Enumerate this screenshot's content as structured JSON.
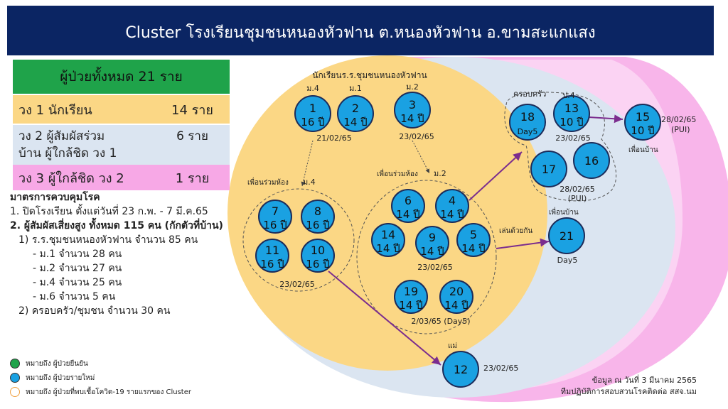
{
  "title": "Cluster โรงเรียนชุมชนหนองหัวฟาน ต.หนองหัวฟาน อ.ขามสะแกแสง",
  "colors": {
    "banner": "#0b2563",
    "student_zone": "#fbd785",
    "contact_zone": "#dbe5f1",
    "close_zone": "#f7a8e6",
    "patient": "#1aa1e2",
    "total_header": "#1fa34a"
  },
  "summary": {
    "total": "ผู้ป่วยทั้งหมด 21 ราย",
    "rows": [
      {
        "label": "วง 1 นักเรียน",
        "value": "14 ราย"
      },
      {
        "label": "วง 2 ผู้สัมผัสร่วม\nบ้าน ผู้ใกล้ชิด วง 1",
        "label_1": "วง 2 ผู้สัมผัสร่วม",
        "label_2": "บ้าน ผู้ใกล้ชิด วง 1",
        "value": "6 ราย"
      },
      {
        "label": "วง 3 ผู้ใกล้ชิด วง 2",
        "value": "1 ราย"
      }
    ]
  },
  "measures": {
    "heading": "มาตรการควบคุมโรค",
    "lines": [
      "1. ปิดโรงเรียน ตั้งแต่วันที่ 23 ก.พ. - 7 มี.ค.65",
      "2. ผู้สัมผัสเสี่ยงสูง ทั้งหมด 115 คน (กักตัวที่บ้าน)",
      "1) ร.ร.ชุมชนหนองหัวฟาน จำนวน 85 คน",
      "- ม.1   จำนวน  28 คน",
      "- ม.2   จำนวน  27 คน",
      "- ม.4   จำนวน  25 คน",
      "- ม.6  จำนวน    5 คน",
      "2) ครอบครัว/ชุมชน จำนวน 30 คน"
    ]
  },
  "legend": [
    {
      "color": "#1fa34a",
      "text": "หมายถึง ผู้ป่วยยืนยัน",
      "icon": "green-dot"
    },
    {
      "color": "#1aa1e2",
      "text": "หมายถึง ผู้ป่วยรายใหม่",
      "icon": "blue-dot"
    },
    {
      "color": "#f0a040",
      "text": "หมายถึง ผู้ป่วยที่พบเชื้อโควิด-19 รายแรกของ Cluster",
      "icon": "orange-ring"
    }
  ],
  "source": [
    "ข้อมูล ณ วันที่ 3 มีนาคม 2565",
    "ทีมปฏิบัติการสอบสวนโรคติดต่อ สสจ.นม"
  ],
  "labels": {
    "school": "นักเรียนร.ร.ชุมชนหนองหัวฟาน",
    "m4": "ม.4",
    "m1": "ม.1",
    "m2": "ม.2",
    "p4": "ป.4",
    "classmates_m4": "เพื่อนร่วมห้อง",
    "classmates_m4_grade": "ม.4",
    "classmates_m2": "เพื่อนร่วมห้อง",
    "classmates_m2_grade": "ม.2",
    "family": "ครอบครัว",
    "neighbor_friend": "เพื่อนบ้าน",
    "neighbor_friend2": "เพื่อนบ้าน",
    "play_together": "เล่นด้วยกัน",
    "mother": "แม่",
    "date_a": "21/02/65",
    "date_b": "23/02/65",
    "date_c": "23/02/65",
    "date_d": "23/02/65",
    "date_e": "2/03/65 (Day5)",
    "date_f": "23/02/65",
    "date_g": "28/02/65",
    "date_g2": "(PUI)",
    "date_h": "28/02/65",
    "date_h2": "(PUI)",
    "date_i": "23/02/65",
    "date_j": "Day5"
  },
  "patients": [
    {
      "id": "p1",
      "num": "1",
      "age": "16 ปี"
    },
    {
      "id": "p2",
      "num": "2",
      "age": "14 ปี"
    },
    {
      "id": "p3",
      "num": "3",
      "age": "14 ปี"
    },
    {
      "id": "p7",
      "num": "7",
      "age": "16 ปี"
    },
    {
      "id": "p8",
      "num": "8",
      "age": "16 ปี"
    },
    {
      "id": "p11",
      "num": "11",
      "age": "16 ปี"
    },
    {
      "id": "p10",
      "num": "10",
      "age": "16 ปี"
    },
    {
      "id": "p6",
      "num": "6",
      "age": "14 ปี"
    },
    {
      "id": "p4",
      "num": "4",
      "age": "14 ปี"
    },
    {
      "id": "p14",
      "num": "14",
      "age": "14 ปี"
    },
    {
      "id": "p9",
      "num": "9",
      "age": "14 ปี"
    },
    {
      "id": "p5",
      "num": "5",
      "age": "14 ปี"
    },
    {
      "id": "p19",
      "num": "19",
      "age": "14 ปี"
    },
    {
      "id": "p20",
      "num": "20",
      "age": "14 ปี"
    },
    {
      "id": "p18",
      "num": "18",
      "age": "Day5"
    },
    {
      "id": "p13",
      "num": "13",
      "age": "10 ปี"
    },
    {
      "id": "p17",
      "num": "17",
      "age": ""
    },
    {
      "id": "p16",
      "num": "16",
      "age": ""
    },
    {
      "id": "p15",
      "num": "15",
      "age": "10 ปี"
    },
    {
      "id": "p21",
      "num": "21",
      "age": ""
    },
    {
      "id": "p12",
      "num": "12",
      "age": ""
    }
  ]
}
